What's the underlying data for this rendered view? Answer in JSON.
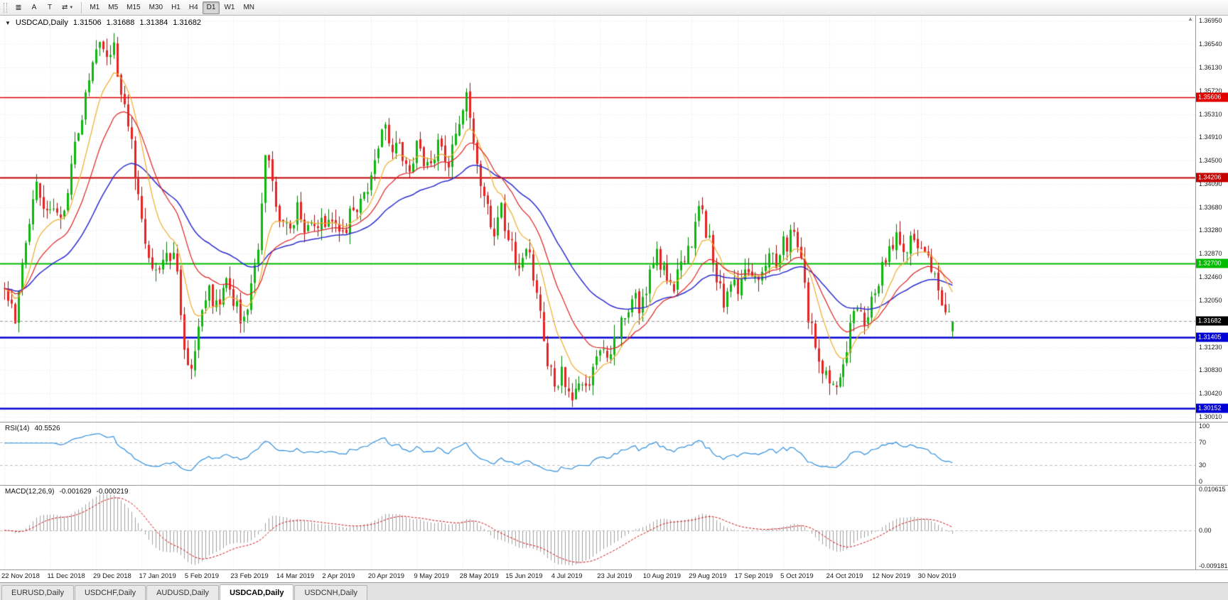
{
  "toolbar": {
    "a_tool": "A",
    "t_tool": "T",
    "timeframes": [
      "M1",
      "M5",
      "M15",
      "M30",
      "H1",
      "H4",
      "D1",
      "W1",
      "MN"
    ],
    "active_timeframe": "D1"
  },
  "icons": {
    "chart_list": "≣",
    "swap": "⇄",
    "caret": "▼",
    "collapse": "▼",
    "scroll_up": "▲"
  },
  "header": {
    "symbol": "USDCAD,Daily",
    "open": "1.31506",
    "high": "1.31688",
    "low": "1.31384",
    "close": "1.31682"
  },
  "price_axis": {
    "max": 1.3704,
    "min": 1.2992,
    "ticks": [
      "1.36950",
      "1.36540",
      "1.36130",
      "1.35720",
      "1.35310",
      "1.34910",
      "1.34500",
      "1.34090",
      "1.33680",
      "1.33280",
      "1.32870",
      "1.32460",
      "1.32050",
      "1.31230",
      "1.30830",
      "1.30420",
      "1.30010"
    ]
  },
  "hlines": [
    {
      "price": 1.35606,
      "label": "1.35606",
      "color": "#e00000",
      "width": 1.5
    },
    {
      "price": 1.34206,
      "label": "1.34206",
      "color": "#c40000",
      "width": 2
    },
    {
      "price": 1.327,
      "label": "1.32700",
      "color": "#00bb00",
      "width": 2
    },
    {
      "price": 1.31405,
      "label": "1.31405",
      "color": "#0000d4",
      "width": 2.5
    },
    {
      "price": 1.30152,
      "label": "1.30152",
      "color": "#0000d4",
      "width": 2.5
    }
  ],
  "current_price": {
    "value": 1.31682,
    "label": "1.31682",
    "line_color": "#9a9a9a",
    "label_bg": "#000000"
  },
  "dates": [
    "22 Nov 2018",
    "11 Dec 2018",
    "29 Dec 2018",
    "17 Jan 2019",
    "5 Feb 2019",
    "23 Feb 2019",
    "14 Mar 2019",
    "2 Apr 2019",
    "20 Apr 2019",
    "9 May 2019",
    "28 May 2019",
    "15 Jun 2019",
    "4 Jul 2019",
    "23 Jul 2019",
    "10 Aug 2019",
    "29 Aug 2019",
    "17 Sep 2019",
    "5 Oct 2019",
    "24 Oct 2019",
    "12 Nov 2019",
    "30 Nov 2019"
  ],
  "rsi": {
    "label": "RSI(14)",
    "value": "40.5526",
    "period": 14,
    "levels": [
      "100",
      "70",
      "30",
      "0"
    ],
    "line_color": "#2f8fdd"
  },
  "macd": {
    "label": "MACD(12,26,9)",
    "value_main": "-0.001629",
    "value_signal": "-0.000219",
    "axis": [
      "0.010615",
      "0.00",
      "-0.009181"
    ],
    "scale_max": 0.010615,
    "scale_min": -0.009181,
    "hist_color": "#a0a0a0",
    "signal_color": "#d01010"
  },
  "tabs": [
    {
      "label": "EURUSD,Daily",
      "active": false
    },
    {
      "label": "USDCHF,Daily",
      "active": false
    },
    {
      "label": "AUDUSD,Daily",
      "active": false
    },
    {
      "label": "USDCAD,Daily",
      "active": true
    },
    {
      "label": "USDCNH,Daily",
      "active": false
    }
  ],
  "colors": {
    "bull": "#0db80d",
    "bear": "#e62222",
    "bull_wick": "#077a07",
    "bear_wick": "#991111",
    "ma_fast": "#eead2b",
    "ma_mid": "#e01f1f",
    "ma_slow": "#2d2dd0",
    "grid": "#e7e7e7"
  },
  "chart_data": {
    "type": "candlestick",
    "symbol": "USDCAD",
    "timeframe": "Daily",
    "num_candles": 270,
    "date_step_candles": 13,
    "last_candle": {
      "open": 1.31506,
      "high": 1.31688,
      "low": 1.31384,
      "close": 1.31682
    },
    "ma": {
      "fast_period": 10,
      "mid_period": 21,
      "slow_period": 45
    },
    "anchors": [
      [
        0,
        1.3225
      ],
      [
        3,
        1.318
      ],
      [
        6,
        1.33
      ],
      [
        9,
        1.342
      ],
      [
        11,
        1.335
      ],
      [
        13,
        1.338
      ],
      [
        16,
        1.3345
      ],
      [
        19,
        1.344
      ],
      [
        22,
        1.353
      ],
      [
        25,
        1.362
      ],
      [
        27,
        1.3662
      ],
      [
        29,
        1.364
      ],
      [
        31,
        1.3652
      ],
      [
        33,
        1.357
      ],
      [
        36,
        1.348
      ],
      [
        38,
        1.339
      ],
      [
        41,
        1.327
      ],
      [
        44,
        1.325
      ],
      [
        47,
        1.329
      ],
      [
        49,
        1.326
      ],
      [
        51,
        1.311
      ],
      [
        53,
        1.3085
      ],
      [
        55,
        1.316
      ],
      [
        58,
        1.322
      ],
      [
        61,
        1.319
      ],
      [
        63,
        1.324
      ],
      [
        65,
        1.321
      ],
      [
        68,
        1.316
      ],
      [
        70,
        1.323
      ],
      [
        72,
        1.331
      ],
      [
        74,
        1.345
      ],
      [
        76,
        1.342
      ],
      [
        78,
        1.335
      ],
      [
        80,
        1.333
      ],
      [
        83,
        1.336
      ],
      [
        85,
        1.331
      ],
      [
        88,
        1.334
      ],
      [
        91,
        1.333
      ],
      [
        93,
        1.336
      ],
      [
        95,
        1.331
      ],
      [
        98,
        1.335
      ],
      [
        101,
        1.338
      ],
      [
        104,
        1.342
      ],
      [
        106,
        1.348
      ],
      [
        108,
        1.351
      ],
      [
        110,
        1.345
      ],
      [
        112,
        1.348
      ],
      [
        114,
        1.343
      ],
      [
        117,
        1.347
      ],
      [
        120,
        1.344
      ],
      [
        123,
        1.348
      ],
      [
        126,
        1.344
      ],
      [
        128,
        1.349
      ],
      [
        130,
        1.3545
      ],
      [
        131,
        1.3556
      ],
      [
        133,
        1.348
      ],
      [
        136,
        1.339
      ],
      [
        139,
        1.333
      ],
      [
        141,
        1.336
      ],
      [
        143,
        1.331
      ],
      [
        146,
        1.327
      ],
      [
        149,
        1.329
      ],
      [
        152,
        1.318
      ],
      [
        154,
        1.31
      ],
      [
        156,
        1.306
      ],
      [
        158,
        1.308
      ],
      [
        161,
        1.303
      ],
      [
        163,
        1.307
      ],
      [
        165,
        1.304
      ],
      [
        167,
        1.309
      ],
      [
        169,
        1.313
      ],
      [
        172,
        1.311
      ],
      [
        175,
        1.316
      ],
      [
        178,
        1.322
      ],
      [
        180,
        1.319
      ],
      [
        182,
        1.323
      ],
      [
        185,
        1.329
      ],
      [
        187,
        1.326
      ],
      [
        190,
        1.323
      ],
      [
        192,
        1.327
      ],
      [
        195,
        1.331
      ],
      [
        197,
        1.338
      ],
      [
        199,
        1.333
      ],
      [
        202,
        1.325
      ],
      [
        204,
        1.32
      ],
      [
        206,
        1.324
      ],
      [
        208,
        1.322
      ],
      [
        211,
        1.327
      ],
      [
        214,
        1.323
      ],
      [
        217,
        1.329
      ],
      [
        219,
        1.326
      ],
      [
        221,
        1.33
      ],
      [
        224,
        1.332
      ],
      [
        226,
        1.327
      ],
      [
        228,
        1.318
      ],
      [
        230,
        1.313
      ],
      [
        232,
        1.309
      ],
      [
        234,
        1.307
      ],
      [
        236,
        1.305
      ],
      [
        238,
        1.31
      ],
      [
        240,
        1.316
      ],
      [
        242,
        1.32
      ],
      [
        244,
        1.317
      ],
      [
        247,
        1.323
      ],
      [
        250,
        1.327
      ],
      [
        253,
        1.331
      ],
      [
        256,
        1.329
      ],
      [
        258,
        1.332
      ],
      [
        260,
        1.33
      ],
      [
        262,
        1.328
      ],
      [
        264,
        1.324
      ],
      [
        266,
        1.32
      ],
      [
        268,
        1.3172
      ],
      [
        269,
        1.3168
      ]
    ]
  }
}
